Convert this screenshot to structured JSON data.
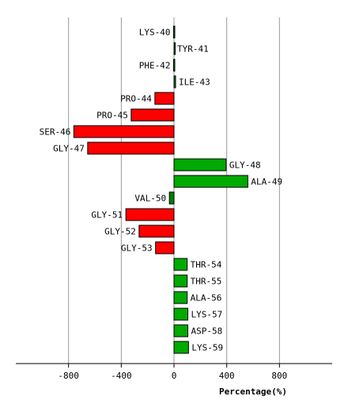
{
  "chart_data": {
    "type": "bar",
    "orientation": "horizontal",
    "xlabel": "Percentage(%)",
    "ylabel": "",
    "title": "",
    "xlim": [
      -1200,
      1200
    ],
    "xticks": [
      -800,
      -400,
      0,
      400,
      800
    ],
    "grid": true,
    "colors": {
      "positive": "#00aa00",
      "negative": "#ff0000",
      "neutral": "#008000"
    },
    "categories": [
      "LYS-40",
      "TYR-41",
      "PHE-42",
      "ILE-43",
      "PRO-44",
      "PRO-45",
      "SER-46",
      "GLY-47",
      "GLY-48",
      "ALA-49",
      "VAL-50",
      "GLY-51",
      "GLY-52",
      "GLY-53",
      "THR-54",
      "THR-55",
      "ALA-56",
      "LYS-57",
      "ASP-58",
      "LYS-59"
    ],
    "values": [
      -3,
      0,
      -3,
      12,
      -145,
      -325,
      -760,
      -655,
      395,
      560,
      -35,
      -365,
      -265,
      -140,
      100,
      100,
      100,
      105,
      105,
      110
    ]
  }
}
